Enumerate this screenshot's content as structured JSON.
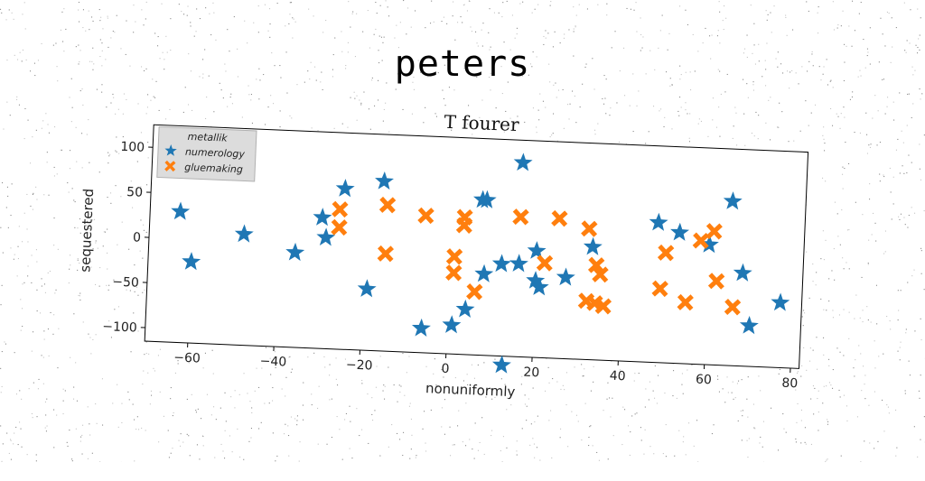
{
  "suptitle": "peters",
  "chart_data": {
    "type": "scatter",
    "title": "T fourer",
    "xlabel": "nonuniformly",
    "ylabel": "sequestered",
    "xlim": [
      -70,
      82
    ],
    "ylim": [
      -115,
      125
    ],
    "xticks": [
      -60,
      -40,
      -20,
      0,
      20,
      40,
      60,
      80
    ],
    "yticks": [
      -100,
      -50,
      0,
      50,
      100
    ],
    "grid": false,
    "legend": {
      "title": "metallik",
      "placement": "top-left"
    },
    "series": [
      {
        "name": "numerology",
        "marker": "star",
        "color": "#1f77b4",
        "points": [
          [
            -63,
            30
          ],
          [
            -60,
            -25
          ],
          [
            -48,
            8
          ],
          [
            -36,
            -10
          ],
          [
            -30,
            30
          ],
          [
            -29,
            8
          ],
          [
            -25,
            63
          ],
          [
            -19,
            -47
          ],
          [
            -16,
            73
          ],
          [
            -6,
            -88
          ],
          [
            1,
            -83
          ],
          [
            4,
            -65
          ],
          [
            7,
            57
          ],
          [
            8,
            57
          ],
          [
            8,
            -25
          ],
          [
            12,
            -13
          ],
          [
            13,
            -125
          ],
          [
            16,
            -12
          ],
          [
            16,
            100
          ],
          [
            20,
            3
          ],
          [
            20,
            -30
          ],
          [
            21,
            -37
          ],
          [
            27,
            -25
          ],
          [
            33,
            10
          ],
          [
            48,
            40
          ],
          [
            53,
            30
          ],
          [
            60,
            18
          ],
          [
            65,
            67
          ],
          [
            68,
            -12
          ],
          [
            70,
            -70
          ],
          [
            77,
            -43
          ]
        ]
      },
      {
        "name": "gluemaking",
        "marker": "x",
        "color": "#ff7f0e",
        "points": [
          [
            -26,
            20
          ],
          [
            -26,
            40
          ],
          [
            -15,
            47
          ],
          [
            -15,
            -7
          ],
          [
            -6,
            37
          ],
          [
            1,
            -7
          ],
          [
            1,
            -25
          ],
          [
            3,
            37
          ],
          [
            3,
            28
          ],
          [
            6,
            -45
          ],
          [
            16,
            40
          ],
          [
            22,
            -10
          ],
          [
            25,
            40
          ],
          [
            32,
            30
          ],
          [
            32,
            -50
          ],
          [
            34,
            -52
          ],
          [
            34,
            -10
          ],
          [
            35,
            -20
          ],
          [
            36,
            -55
          ],
          [
            49,
            -33
          ],
          [
            50,
            7
          ],
          [
            55,
            -47
          ],
          [
            58,
            22
          ],
          [
            61,
            33
          ],
          [
            62,
            -22
          ],
          [
            66,
            -50
          ]
        ]
      }
    ]
  }
}
